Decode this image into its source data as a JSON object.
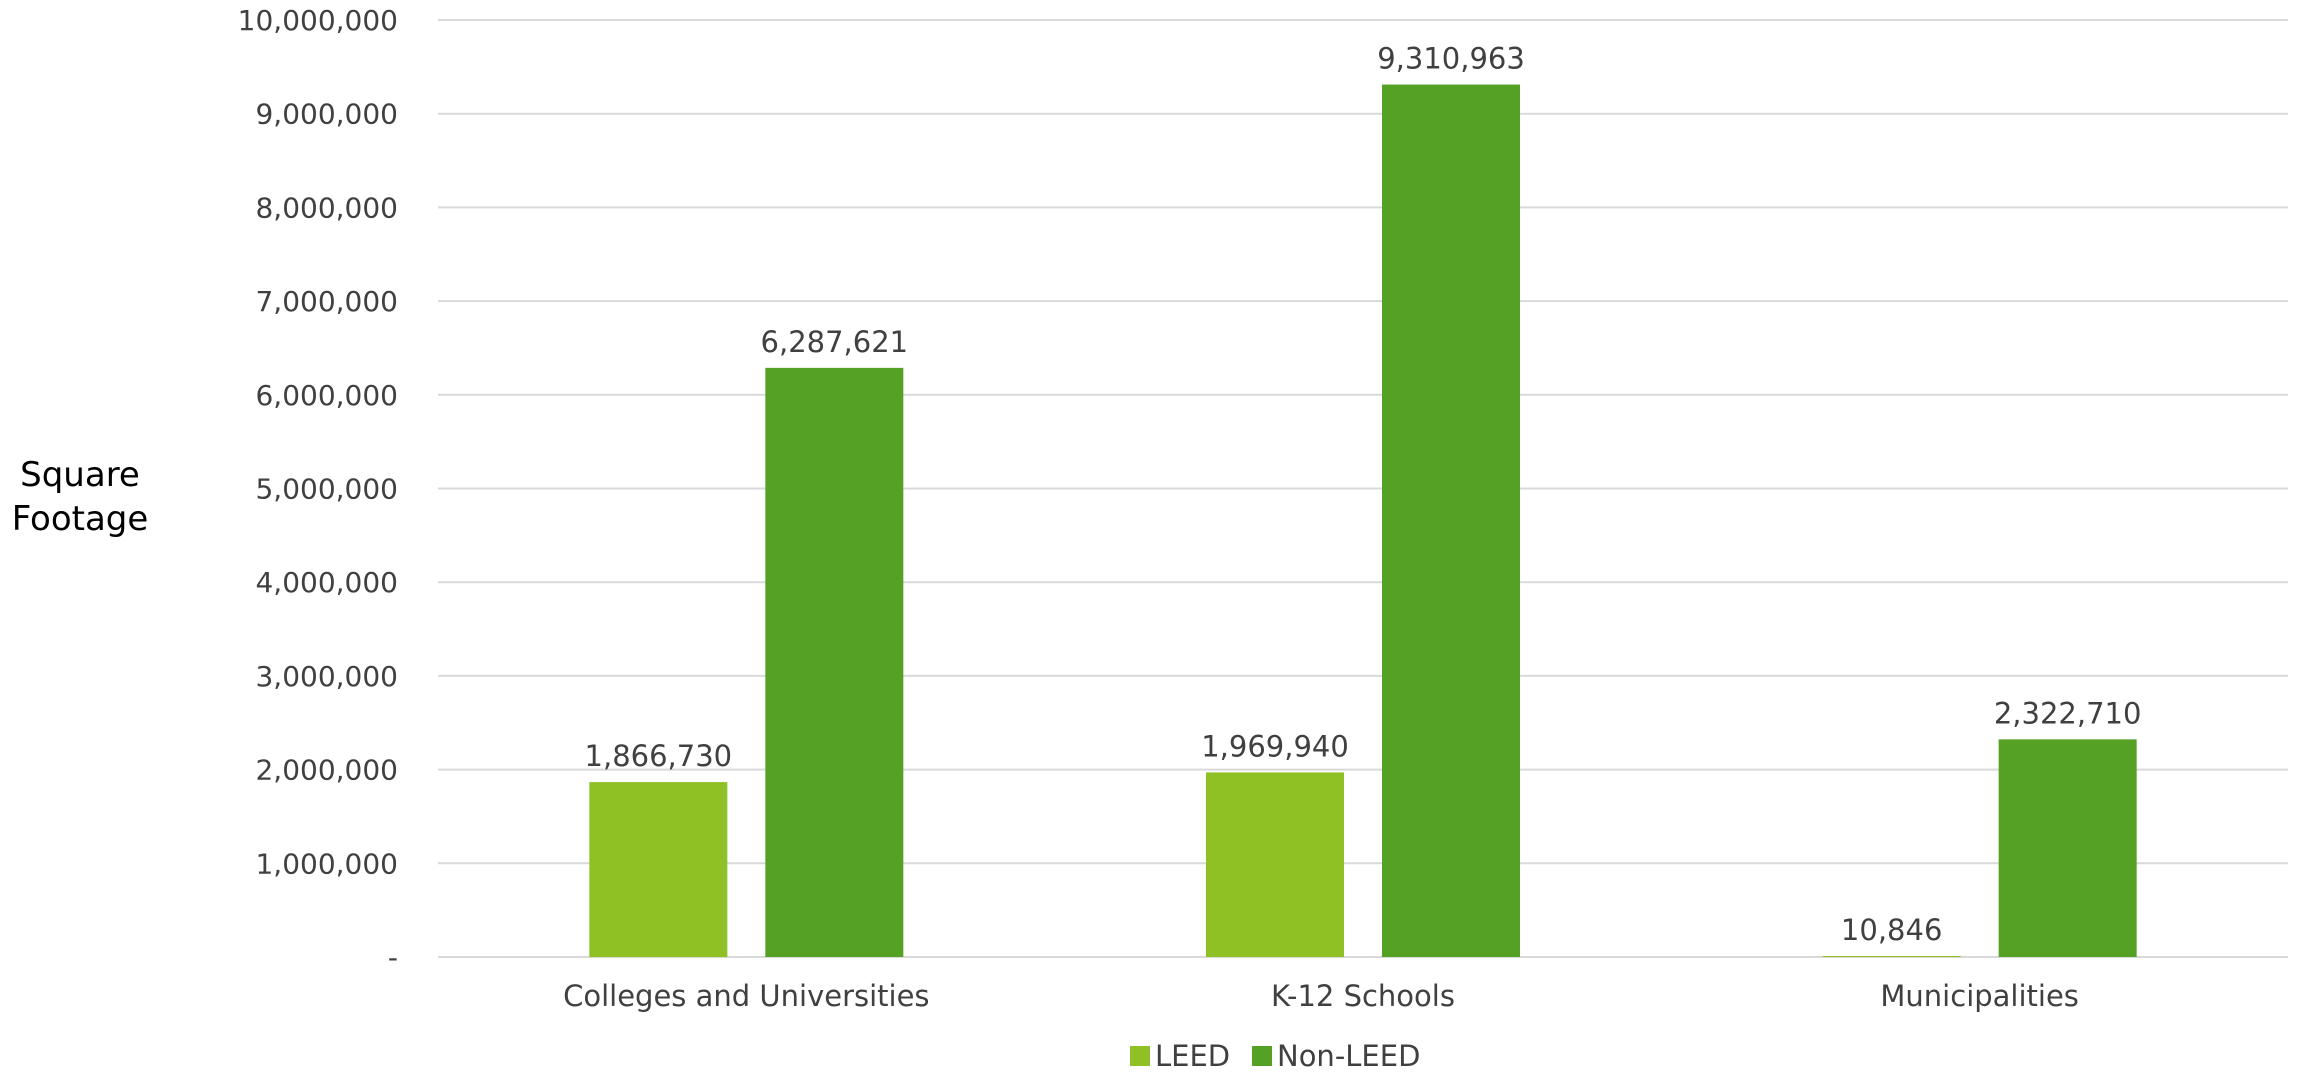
{
  "chart_data": {
    "type": "bar",
    "title": "",
    "xlabel": "",
    "ylabel": [
      "Square",
      "Footage"
    ],
    "ylim": [
      0,
      10000000
    ],
    "yticks": [
      0,
      1000000,
      2000000,
      3000000,
      4000000,
      5000000,
      6000000,
      7000000,
      8000000,
      9000000,
      10000000
    ],
    "ytick_labels": [
      "-",
      "1,000,000",
      "2,000,000",
      "3,000,000",
      "4,000,000",
      "5,000,000",
      "6,000,000",
      "7,000,000",
      "8,000,000",
      "9,000,000",
      "10,000,000"
    ],
    "categories": [
      "Colleges and Universities",
      "K-12 Schools",
      "Municipalities"
    ],
    "series": [
      {
        "name": "LEED",
        "color": "#8fc125",
        "values": [
          1866730,
          1969940,
          10846
        ],
        "labels": [
          "1,866,730",
          "1,969,940",
          "10,846"
        ]
      },
      {
        "name": "Non-LEED",
        "color": "#55a124",
        "values": [
          6287621,
          9310963,
          2322710
        ],
        "labels": [
          "6,287,621",
          "9,310,963",
          "2,322,710"
        ]
      }
    ],
    "grid": true,
    "legend_position": "bottom"
  }
}
